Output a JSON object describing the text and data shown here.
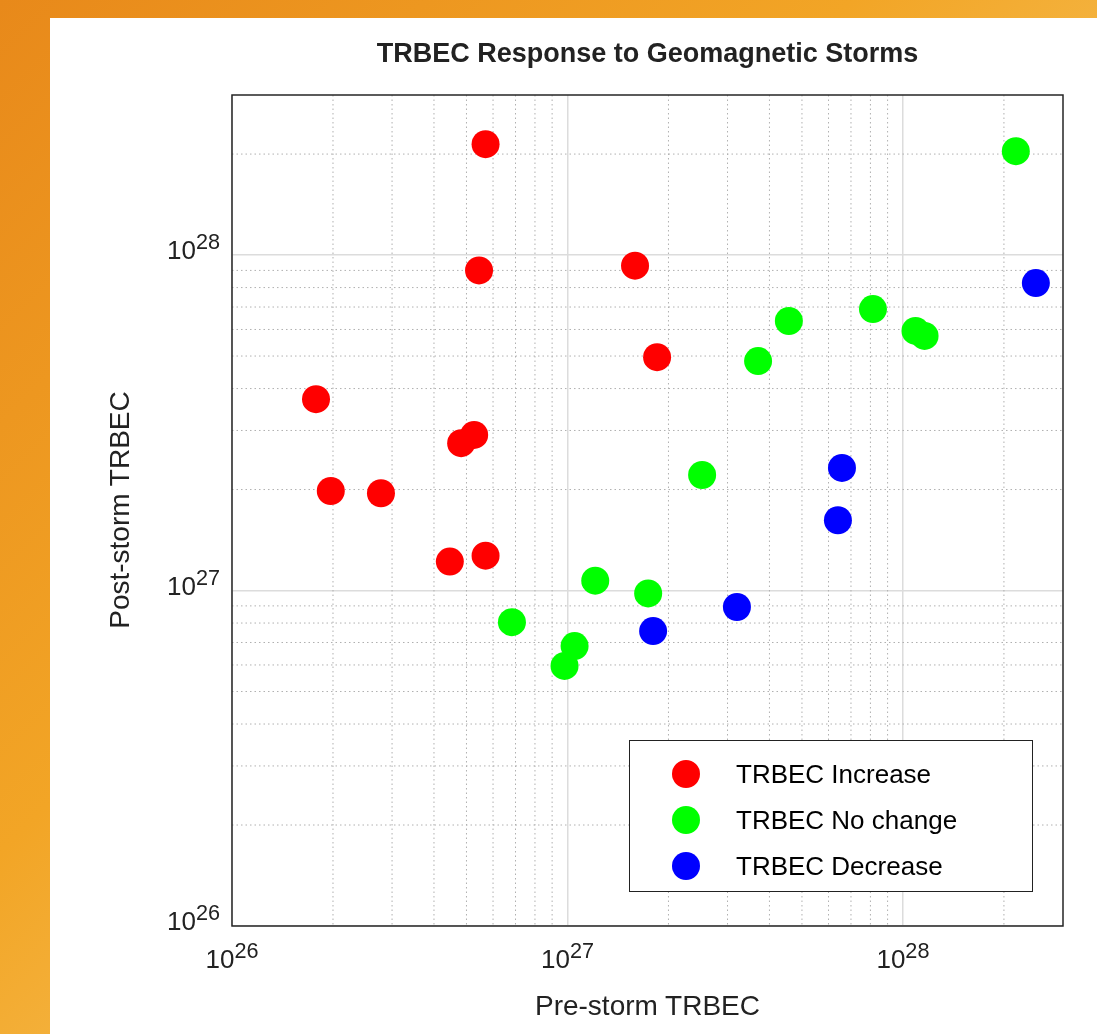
{
  "chart_data": {
    "type": "scatter",
    "title": "TRBEC Response to Geomagnetic Storms",
    "xlabel": "Pre-storm TRBEC",
    "ylabel": "Post-storm TRBEC",
    "log": "xy",
    "grid": true,
    "legend": "bottom right",
    "marker": "circle",
    "xlim": [
      1e+26,
      3e+28
    ],
    "ylim": [
      1e+26,
      3e+28
    ],
    "xticks": [
      {
        "value": 1e+26,
        "label": "10$^{26}$"
      },
      {
        "value": 1e+27,
        "label": "10$^{27}$"
      },
      {
        "value": 1e+28,
        "label": "10$^{28}$"
      }
    ],
    "yticks": [
      {
        "value": 1e+26,
        "label": "10$^{26}$"
      },
      {
        "value": 1e+27,
        "label": "10$^{27}$"
      },
      {
        "value": 1e+28,
        "label": "10$^{28}$"
      }
    ],
    "series": [
      {
        "name": "TRBEC Increase",
        "color": "#ff0000",
        "x": [
          5.7e+26,
          5.45e+26,
          1.59e+27,
          1.85e+27,
          1.78e+26,
          5.27e+26,
          4.82e+26,
          1.97e+26,
          2.78e+26,
          4.46e+26,
          5.7e+26
        ],
        "values": [
          2.14e+28,
          9e+27,
          9.3e+27,
          4.96e+27,
          3.72e+27,
          2.91e+27,
          2.75e+27,
          1.98e+27,
          1.95e+27,
          1.22e+27,
          1.27e+27
        ]
      },
      {
        "name": "TRBEC No change",
        "color": "#00ff00",
        "x": [
          2.17e+28,
          8.14e+27,
          4.57e+27,
          1.09e+28,
          1.16e+28,
          3.7e+27,
          2.52e+27,
          1.21e+27,
          1.74e+27,
          6.83e+26,
          1.05e+27,
          9.8e+26
        ],
        "values": [
          2.04e+28,
          6.9e+27,
          6.36e+27,
          5.94e+27,
          5.74e+27,
          4.83e+27,
          2.21e+27,
          1.07e+27,
          9.8e+26,
          8.05e+26,
          6.83e+26,
          5.96e+26
        ]
      },
      {
        "name": "TRBEC Decrease",
        "color": "#0000ff",
        "x": [
          2.49e+28,
          6.58e+27,
          6.4e+27,
          3.2e+27,
          1.8e+27
        ],
        "values": [
          8.25e+27,
          2.32e+27,
          1.62e+27,
          8.93e+26,
          7.57e+26
        ]
      }
    ]
  }
}
